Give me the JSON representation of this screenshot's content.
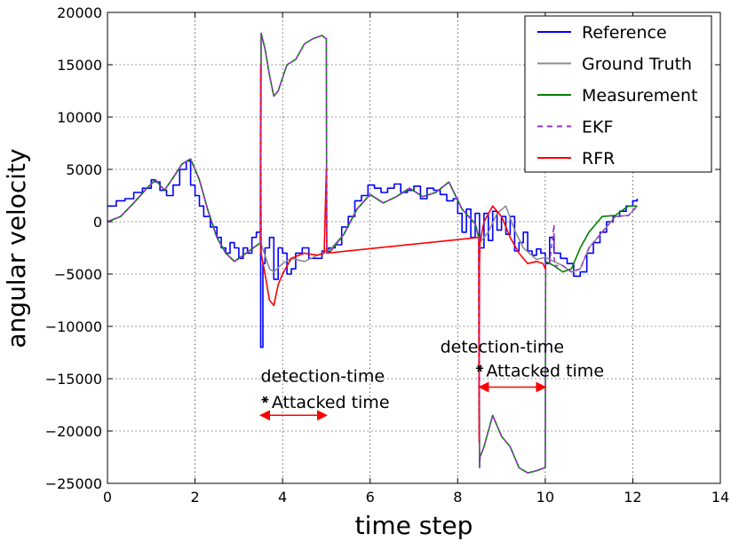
{
  "chart_data": {
    "type": "line",
    "xlabel": "time step",
    "ylabel": "angular velocity",
    "xlim": [
      0,
      14
    ],
    "ylim": [
      -25000,
      20000
    ],
    "xticks": [
      0,
      2,
      4,
      6,
      8,
      10,
      12,
      14
    ],
    "yticks": [
      -25000,
      -20000,
      -15000,
      -10000,
      -5000,
      0,
      5000,
      10000,
      15000,
      20000
    ],
    "xtick_labels": [
      "0",
      "2",
      "4",
      "6",
      "8",
      "10",
      "12",
      "14"
    ],
    "ytick_labels": [
      "−25000",
      "−20000",
      "−15000",
      "−10000",
      "−5000",
      "0",
      "5000",
      "10000",
      "15000",
      "20000"
    ],
    "grid": true,
    "legend_position": "top-right",
    "series": [
      {
        "name": "Reference",
        "color": "#0000ff",
        "style": "solid",
        "step": true,
        "x": [
          0,
          0.2,
          0.4,
          0.6,
          0.8,
          1.0,
          1.1,
          1.2,
          1.35,
          1.5,
          1.65,
          1.8,
          1.9,
          2.0,
          2.1,
          2.2,
          2.35,
          2.5,
          2.6,
          2.7,
          2.8,
          2.9,
          3.0,
          3.1,
          3.2,
          3.3,
          3.4,
          3.5,
          3.55,
          3.6,
          3.7,
          3.8,
          3.9,
          4.0,
          4.1,
          4.2,
          4.3,
          4.45,
          4.6,
          4.75,
          4.9,
          5.05,
          5.2,
          5.35,
          5.5,
          5.65,
          5.8,
          5.95,
          6.1,
          6.25,
          6.4,
          6.55,
          6.7,
          6.85,
          7.0,
          7.15,
          7.3,
          7.45,
          7.6,
          7.75,
          7.9,
          8.0,
          8.1,
          8.2,
          8.3,
          8.4,
          8.5,
          8.6,
          8.7,
          8.8,
          8.9,
          9.0,
          9.1,
          9.2,
          9.3,
          9.4,
          9.5,
          9.6,
          9.7,
          9.8,
          9.9,
          10.0,
          10.1,
          10.2,
          10.35,
          10.5,
          10.65,
          10.8,
          10.95,
          11.1,
          11.25,
          11.4,
          11.55,
          11.7,
          11.85,
          12.0,
          12.1
        ],
        "y": [
          1500,
          2000,
          2200,
          2800,
          3200,
          4000,
          3800,
          3000,
          2500,
          3500,
          5000,
          5800,
          3500,
          2500,
          1500,
          500,
          -500,
          -1500,
          -2500,
          -3000,
          -2000,
          -2500,
          -3500,
          -2500,
          -3000,
          -1500,
          -1000,
          -12000,
          -4000,
          -2500,
          -1500,
          -5500,
          -2500,
          -3000,
          -5000,
          -4500,
          -3000,
          -2500,
          -3500,
          -3500,
          -2800,
          -2500,
          -2200,
          -500,
          500,
          2000,
          2500,
          3500,
          3200,
          2800,
          3200,
          3600,
          2800,
          3000,
          3400,
          2200,
          3200,
          3000,
          2600,
          2000,
          2200,
          800,
          -1000,
          1200,
          -1500,
          800,
          -2500,
          800,
          -1800,
          1000,
          -800,
          500,
          -1200,
          500,
          -2800,
          -2000,
          -1000,
          -2800,
          -3200,
          -2600,
          -3000,
          -4000,
          -1500,
          -3000,
          -3500,
          -4000,
          -5200,
          -4800,
          -3000,
          -2000,
          -1000,
          0,
          500,
          1000,
          1500,
          2000,
          2200
        ]
      },
      {
        "name": "Ground Truth",
        "color": "#8c8c8c",
        "style": "solid",
        "x": [
          0,
          0.3,
          0.6,
          0.9,
          1.1,
          1.3,
          1.5,
          1.7,
          1.9,
          2.1,
          2.3,
          2.5,
          2.7,
          2.9,
          3.1,
          3.3,
          3.5,
          3.7,
          3.8,
          4.0,
          4.2,
          4.5,
          4.8,
          5.1,
          5.4,
          5.7,
          6.0,
          6.3,
          6.6,
          6.9,
          7.2,
          7.5,
          7.8,
          8.1,
          8.4,
          8.5,
          8.7,
          8.9,
          9.1,
          9.3,
          9.5,
          9.8,
          10.0,
          10.2,
          10.4,
          10.6,
          10.8,
          11.0,
          11.3,
          11.6,
          11.9,
          12.1
        ],
        "y": [
          0,
          500,
          1800,
          3200,
          4000,
          3000,
          4200,
          5500,
          6000,
          4000,
          1000,
          -1500,
          -3000,
          -3800,
          -3200,
          -2600,
          -2000,
          -4500,
          -4800,
          -4000,
          -3500,
          -3800,
          -3200,
          -2600,
          -1200,
          1200,
          2600,
          1800,
          2400,
          3200,
          2400,
          2800,
          3800,
          1200,
          -200,
          -2000,
          -1000,
          800,
          1500,
          -800,
          -2500,
          -3600,
          -3400,
          -3800,
          -4200,
          -4800,
          -4500,
          -2500,
          -1000,
          500,
          600,
          1500
        ]
      },
      {
        "name": "Measurement",
        "color": "#008000",
        "style": "solid",
        "x": [
          0,
          0.3,
          0.6,
          0.9,
          1.1,
          1.3,
          1.5,
          1.7,
          1.9,
          2.1,
          2.3,
          2.5,
          2.7,
          2.9,
          3.1,
          3.3,
          3.5,
          3.51,
          3.6,
          3.7,
          3.8,
          3.9,
          4.1,
          4.3,
          4.5,
          4.7,
          4.9,
          4.99,
          5.0,
          5.01,
          5.1,
          5.4,
          5.7,
          6.0,
          6.3,
          6.6,
          6.9,
          7.2,
          7.5,
          7.8,
          8.1,
          8.4,
          8.49,
          8.5,
          8.51,
          8.6,
          8.8,
          9.0,
          9.2,
          9.4,
          9.6,
          9.8,
          9.99,
          10.0,
          10.01,
          10.2,
          10.4,
          10.6,
          10.8,
          11.0,
          11.3,
          11.6,
          11.9,
          12.1
        ],
        "y": [
          0,
          500,
          1800,
          3200,
          4000,
          3000,
          4200,
          5500,
          6000,
          4000,
          1000,
          -1500,
          -3000,
          -3800,
          -3200,
          -2600,
          -2000,
          18000,
          16500,
          14000,
          12000,
          12500,
          15000,
          15500,
          17000,
          17500,
          17800,
          17500,
          17500,
          -3000,
          -2800,
          -1200,
          1200,
          2600,
          1800,
          2400,
          3200,
          2400,
          2800,
          3800,
          1200,
          -200,
          -1500,
          -23500,
          -22500,
          -21500,
          -18500,
          -20500,
          -21500,
          -23500,
          -24000,
          -23800,
          -23500,
          -23500,
          -3800,
          -4200,
          -4800,
          -4500,
          -2500,
          -1000,
          500,
          600,
          1500,
          1500
        ]
      },
      {
        "name": "EKF",
        "color": "#9933cc",
        "style": "dashed",
        "x": [
          0,
          0.3,
          0.6,
          0.9,
          1.1,
          1.3,
          1.5,
          1.7,
          1.9,
          2.1,
          2.3,
          2.5,
          2.7,
          2.9,
          3.1,
          3.3,
          3.5,
          3.51,
          3.6,
          3.7,
          3.8,
          3.9,
          4.1,
          4.3,
          4.5,
          4.7,
          4.9,
          4.99,
          5.0,
          5.01,
          5.1,
          5.4,
          5.7,
          6.0,
          6.3,
          6.6,
          6.9,
          7.2,
          7.5,
          7.8,
          8.1,
          8.4,
          8.49,
          8.5,
          8.51,
          8.6,
          8.8,
          9.0,
          9.2,
          9.4,
          9.6,
          9.8,
          9.99,
          10.0,
          10.01,
          10.1,
          10.2,
          10.21,
          10.4,
          10.6,
          10.8,
          11.0,
          11.3,
          11.6,
          11.9,
          12.1
        ],
        "y": [
          0,
          500,
          1800,
          3200,
          4000,
          3000,
          4200,
          5500,
          6000,
          4000,
          1000,
          -1500,
          -3000,
          -3800,
          -3200,
          -2600,
          -2000,
          18000,
          16500,
          14000,
          12000,
          12500,
          15000,
          15500,
          17000,
          17500,
          17800,
          17500,
          17500,
          -3000,
          -2800,
          -1200,
          1200,
          2600,
          1800,
          2400,
          3200,
          2400,
          2800,
          3800,
          1200,
          -200,
          -1500,
          -23500,
          -22500,
          -21500,
          -18500,
          -20500,
          -21500,
          -23500,
          -24000,
          -23800,
          -23500,
          -23500,
          -3800,
          -4000,
          -300,
          -4200,
          -4200,
          -4800,
          -4500,
          -2500,
          -1000,
          500,
          600,
          1500
        ]
      },
      {
        "name": "RFR",
        "color": "#ff0000",
        "style": "solid",
        "x": [
          3.49,
          3.5,
          3.51,
          3.6,
          3.7,
          3.8,
          3.9,
          4.0,
          4.2,
          4.5,
          4.8,
          4.95,
          5.0,
          5.01,
          8.48,
          8.49,
          8.5,
          8.51,
          8.6,
          8.8,
          9.0,
          9.2,
          9.4,
          9.6,
          9.8,
          9.95,
          10.0,
          10.01
        ],
        "y": [
          -2000,
          15000,
          -3000,
          -5000,
          -7500,
          -8000,
          -6000,
          -5000,
          -3500,
          -3000,
          -3200,
          -3000,
          5000,
          -3000,
          -1500,
          -21000,
          -4000,
          -2000,
          0,
          1500,
          500,
          -1500,
          -3000,
          -4000,
          -3800,
          -4000,
          -4500,
          -4000
        ]
      }
    ],
    "annotations": [
      {
        "text": "detection-time",
        "x": 3.5,
        "y": -15300
      },
      {
        "text": "Attacked time",
        "x": 3.75,
        "y": -17800
      },
      {
        "text": "detection-time",
        "x": 7.6,
        "y": -12500
      },
      {
        "text": "Attacked time",
        "x": 8.65,
        "y": -14800
      }
    ],
    "detection_markers": [
      {
        "x": 3.6,
        "y": -17000
      },
      {
        "x": 8.5,
        "y": -14000
      }
    ],
    "attack_intervals": [
      {
        "x1": 3.5,
        "x2": 5.0,
        "y": -18500
      },
      {
        "x1": 8.5,
        "x2": 10.0,
        "y": -15800
      }
    ]
  }
}
